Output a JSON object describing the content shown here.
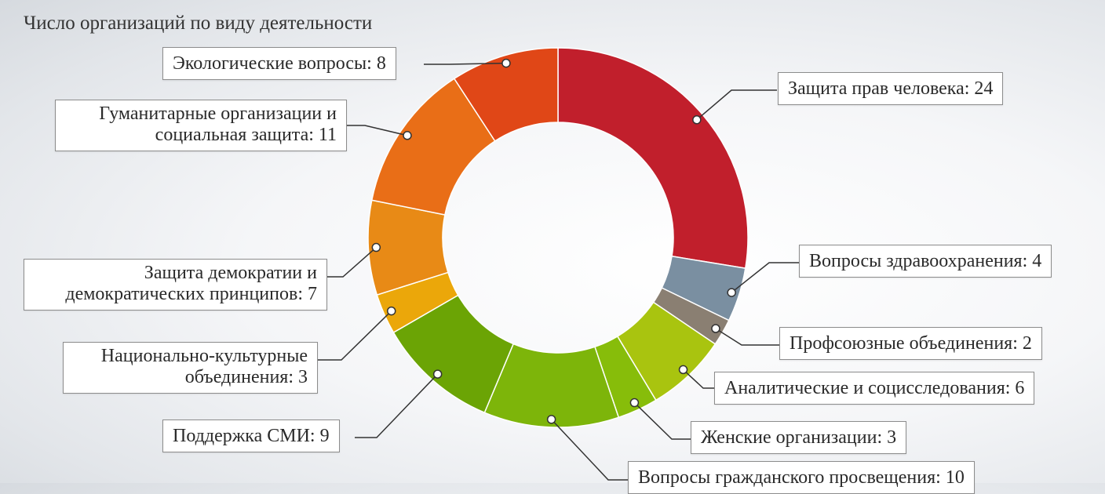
{
  "chart_data": {
    "type": "pie",
    "title": "Число организаций по виду деятельности",
    "slices": [
      {
        "label": "Защита прав человека: 24",
        "name": "Защита прав человека",
        "value": 24,
        "color": "#c11f2c"
      },
      {
        "label": "Вопросы здравоохранения: 4",
        "name": "Вопросы здравоохранения",
        "value": 4,
        "color": "#7a8fa1"
      },
      {
        "label": "Профсоюзные объединения: 2",
        "name": "Профсоюзные объединения",
        "value": 2,
        "color": "#8a7f72"
      },
      {
        "label": "Аналитические и социсследования: 6",
        "name": "Аналитические и социсследования",
        "value": 6,
        "color": "#a9c40f"
      },
      {
        "label": "Женские организации: 3",
        "name": "Женские организации",
        "value": 3,
        "color": "#87bd0a"
      },
      {
        "label": "Вопросы гражданского просвещения: 10",
        "name": "Вопросы гражданского просвещения",
        "value": 10,
        "color": "#7db50a"
      },
      {
        "label": "Поддержка СМИ: 9",
        "name": "Поддержка СМИ",
        "value": 9,
        "color": "#6ba405"
      },
      {
        "label": "Национально-культурные объединения: 3",
        "name": "Национально-культурные объединения",
        "value": 3,
        "color": "#eba70a"
      },
      {
        "label": "Защита демократии и демократических принципов: 7",
        "name": "Защита демократии и демократических принципов",
        "value": 7,
        "color": "#e88a16"
      },
      {
        "label": "Гуманитарные организации и социальная защита: 11",
        "name": "Гуманитарные организации и социальная защита",
        "value": 11,
        "color": "#e96e17"
      },
      {
        "label": "Экологические вопросы: 8",
        "name": "Экологические вопросы",
        "value": 8,
        "color": "#e04717"
      }
    ],
    "legend": "callout labels around donut"
  },
  "labels": {
    "human_rights": "Защита прав человека: 24",
    "health": "Вопросы здравоохранения: 4",
    "unions": "Профсоюзные объединения: 2",
    "analytics": "Аналитические и социсследования: 6",
    "women": "Женские организации: 3",
    "civic": "Вопросы гражданского просвещения: 10",
    "media": "Поддержка СМИ: 9",
    "national_1": "Национально-культурные",
    "national_2": "объединения: 3",
    "democracy_1": "Защита демократии и",
    "democracy_2": "демократических принципов: 7",
    "humanitarian_1": "Гуманитарные организации и",
    "humanitarian_2": "социальная защита: 11",
    "ecology": "Экологические вопросы: 8"
  }
}
